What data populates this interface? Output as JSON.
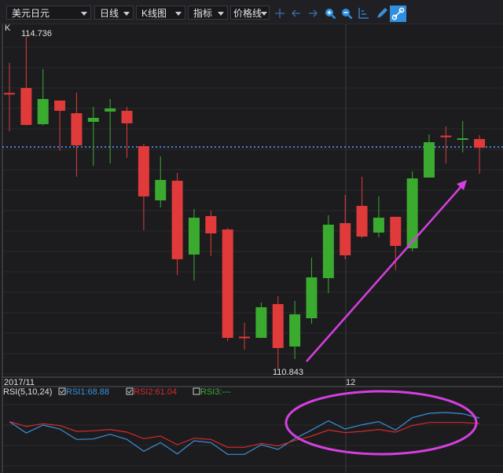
{
  "toolbar": {
    "symbol": "美元日元",
    "period": "日线",
    "chart_type": "K线图",
    "indicator": "指标",
    "price_line": "价格线",
    "icons": [
      "crosshair-icon",
      "arrow-left-icon",
      "arrow-right-icon",
      "zoom-in-icon",
      "zoom-out-icon",
      "axis-icon",
      "pen-icon",
      "link-icon"
    ],
    "active_color": "#2f8fe0"
  },
  "chart_data": [
    {
      "type": "candlestick",
      "panel_label": "K",
      "max_label": "114.736",
      "min_label": "110.843",
      "x_labels": [
        "2017/11",
        "12"
      ],
      "current_price_line": 113.448,
      "grid": true,
      "colors": {
        "down": "#e03a3a",
        "up": "#3aab2f",
        "price_line": "#4a7fd8"
      },
      "candles": [
        {
          "o": 114.08,
          "h": 114.432,
          "l": 113.632,
          "c": 114.07
        },
        {
          "o": 114.138,
          "h": 114.736,
          "l": 113.7,
          "c": 113.705
        },
        {
          "o": 113.714,
          "h": 114.359,
          "l": 113.7,
          "c": 114.009
        },
        {
          "o": 113.991,
          "h": 113.991,
          "l": 113.402,
          "c": 113.871
        },
        {
          "o": 113.843,
          "h": 114.083,
          "l": 113.098,
          "c": 113.466
        },
        {
          "o": 113.742,
          "h": 113.917,
          "l": 113.227,
          "c": 113.788
        },
        {
          "o": 113.862,
          "h": 114.009,
          "l": 113.254,
          "c": 113.899
        },
        {
          "o": 113.871,
          "h": 113.917,
          "l": 113.319,
          "c": 113.724
        },
        {
          "o": 113.457,
          "h": 113.484,
          "l": 112.472,
          "c": 112.868
        },
        {
          "o": 112.822,
          "h": 113.337,
          "l": 112.739,
          "c": 113.061
        },
        {
          "o": 113.052,
          "h": 113.144,
          "l": 111.948,
          "c": 112.132
        },
        {
          "o": 112.187,
          "h": 112.721,
          "l": 111.883,
          "c": 112.619
        },
        {
          "o": 112.638,
          "h": 112.702,
          "l": 112.168,
          "c": 112.435
        },
        {
          "o": 112.481,
          "h": 112.5,
          "l": 111.174,
          "c": 111.211
        },
        {
          "o": 111.225,
          "h": 111.386,
          "l": 111.073,
          "c": 111.22
        },
        {
          "o": 111.211,
          "h": 111.625,
          "l": 111.211,
          "c": 111.57
        },
        {
          "o": 111.607,
          "h": 111.699,
          "l": 110.843,
          "c": 111.092
        },
        {
          "o": 111.11,
          "h": 111.644,
          "l": 110.963,
          "c": 111.487
        },
        {
          "o": 111.441,
          "h": 112.15,
          "l": 111.377,
          "c": 111.92
        },
        {
          "o": 111.911,
          "h": 112.647,
          "l": 111.736,
          "c": 112.537
        },
        {
          "o": 112.555,
          "h": 112.886,
          "l": 112.132,
          "c": 112.178
        },
        {
          "o": 112.757,
          "h": 113.098,
          "l": 112.38,
          "c": 112.398
        },
        {
          "o": 112.444,
          "h": 112.868,
          "l": 112.389,
          "c": 112.619
        },
        {
          "o": 112.629,
          "h": 112.629,
          "l": 112.003,
          "c": 112.288
        },
        {
          "o": 112.26,
          "h": 113.162,
          "l": 112.224,
          "c": 113.079
        },
        {
          "o": 113.089,
          "h": 113.595,
          "l": 113.089,
          "c": 113.503
        },
        {
          "o": 113.58,
          "h": 113.687,
          "l": 113.254,
          "c": 113.576
        },
        {
          "o": 113.545,
          "h": 113.751,
          "l": 113.383,
          "c": 113.549
        },
        {
          "o": 113.54,
          "h": 113.586,
          "l": 113.135,
          "c": 113.438
        }
      ],
      "annotation": {
        "type": "arrow",
        "color": "#d63fe0"
      }
    },
    {
      "type": "line",
      "panel_label": "RSI(5,10,24)",
      "series": [
        {
          "name": "RSI1",
          "label": "RSI1:68.88",
          "checked": true,
          "color": "#3a8fd8",
          "values": [
            63.7,
            47.6,
            58.8,
            53.2,
            38.3,
            39.0,
            45.7,
            38.3,
            21.5,
            33.8,
            17.7,
            36.4,
            33.8,
            17.0,
            17.0,
            30.8,
            24.1,
            39.4,
            51.7,
            64.8,
            53.2,
            59.2,
            63.7,
            51.7,
            69.3,
            75.6,
            76.7,
            74.9,
            68.88
          ]
        },
        {
          "name": "RSI2",
          "label": "RSI2:61.04",
          "checked": true,
          "color": "#d42a2a",
          "values": [
            63.7,
            56.9,
            60.7,
            58.1,
            49.8,
            50.6,
            52.5,
            48.7,
            39.4,
            43.1,
            30.8,
            40.1,
            38.3,
            27.1,
            27.1,
            32.7,
            29.0,
            36.8,
            43.1,
            51.7,
            48.0,
            49.8,
            52.5,
            48.7,
            58.1,
            62.5,
            62.5,
            62.5,
            61.04
          ]
        },
        {
          "name": "RSI3",
          "label": "RSI3:---",
          "checked": false,
          "color": "#3aab2f",
          "values": []
        }
      ],
      "annotation": {
        "type": "ellipse",
        "color": "#d63fe0"
      }
    }
  ]
}
